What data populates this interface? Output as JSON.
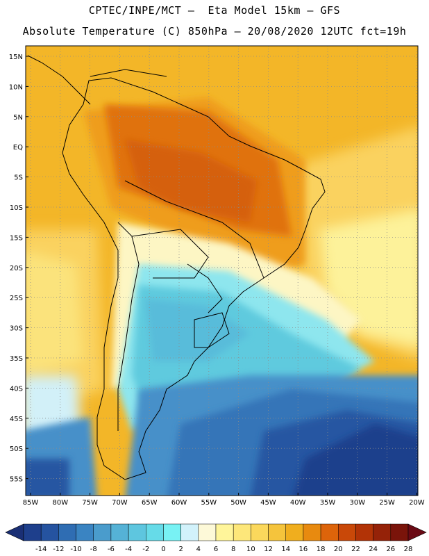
{
  "header": {
    "title_line1": "CPTEC/INPE/MCT –  Eta Model 15km – GFS",
    "title_line2": "Absolute Temperature (C) 850hPa – 20/08/2020 12UTC fct=19h"
  },
  "map": {
    "lat_labels": [
      "15N",
      "10N",
      "5N",
      "EQ",
      "5S",
      "10S",
      "15S",
      "20S",
      "25S",
      "30S",
      "35S",
      "40S",
      "45S",
      "50S",
      "55S"
    ],
    "lon_labels": [
      "85W",
      "80W",
      "75W",
      "70W",
      "65W",
      "60W",
      "55W",
      "50W",
      "45W",
      "40W",
      "35W",
      "30W",
      "25W",
      "20W"
    ]
  },
  "colorbar": {
    "labels": [
      "-14",
      "-12",
      "-10",
      "-8",
      "-6",
      "-4",
      "-2",
      "0",
      "2",
      "4",
      "6",
      "8",
      "10",
      "12",
      "14",
      "16",
      "18",
      "20",
      "22",
      "24",
      "26",
      "28"
    ],
    "colors": [
      "#1e3f8c",
      "#2553a0",
      "#2f6db3",
      "#3a84c2",
      "#4a9ccc",
      "#55b2d6",
      "#5ec6df",
      "#66dbe8",
      "#78f2f4",
      "#d2f2fb",
      "#fdf9d8",
      "#fff59a",
      "#fde77a",
      "#fbd85c",
      "#f5c43c",
      "#f0ae1e",
      "#e88a0f",
      "#dd640a",
      "#c94808",
      "#b23306",
      "#952208",
      "#7a140a"
    ],
    "left_arrow_color": "#1a2f75",
    "right_arrow_color": "#6a0a14"
  },
  "map_colors": {
    "ocean_north": "#f3b628",
    "ocean_north_deep": "#ee9a16",
    "amazon": "#e0720c",
    "amazon_core": "#d5600a",
    "brazil_central": "#ef9d1e",
    "pacific": "#fad25e",
    "pacific_mid": "#fbe37c",
    "atlantic_east": "#fdf29a",
    "cold_core": "#58bcda",
    "cold_mid": "#5ecade",
    "cold_light": "#8ee6ee",
    "cold_pale": "#d2f0f8",
    "warm_pale": "#fdf6c4",
    "south_ocean_1": "#4690c9",
    "south_ocean_2": "#3474b8",
    "south_ocean_3": "#2857a2",
    "south_ocean_4": "#1e3f8c",
    "border_line": "#000000",
    "grid_line": "#8c8c8c"
  }
}
